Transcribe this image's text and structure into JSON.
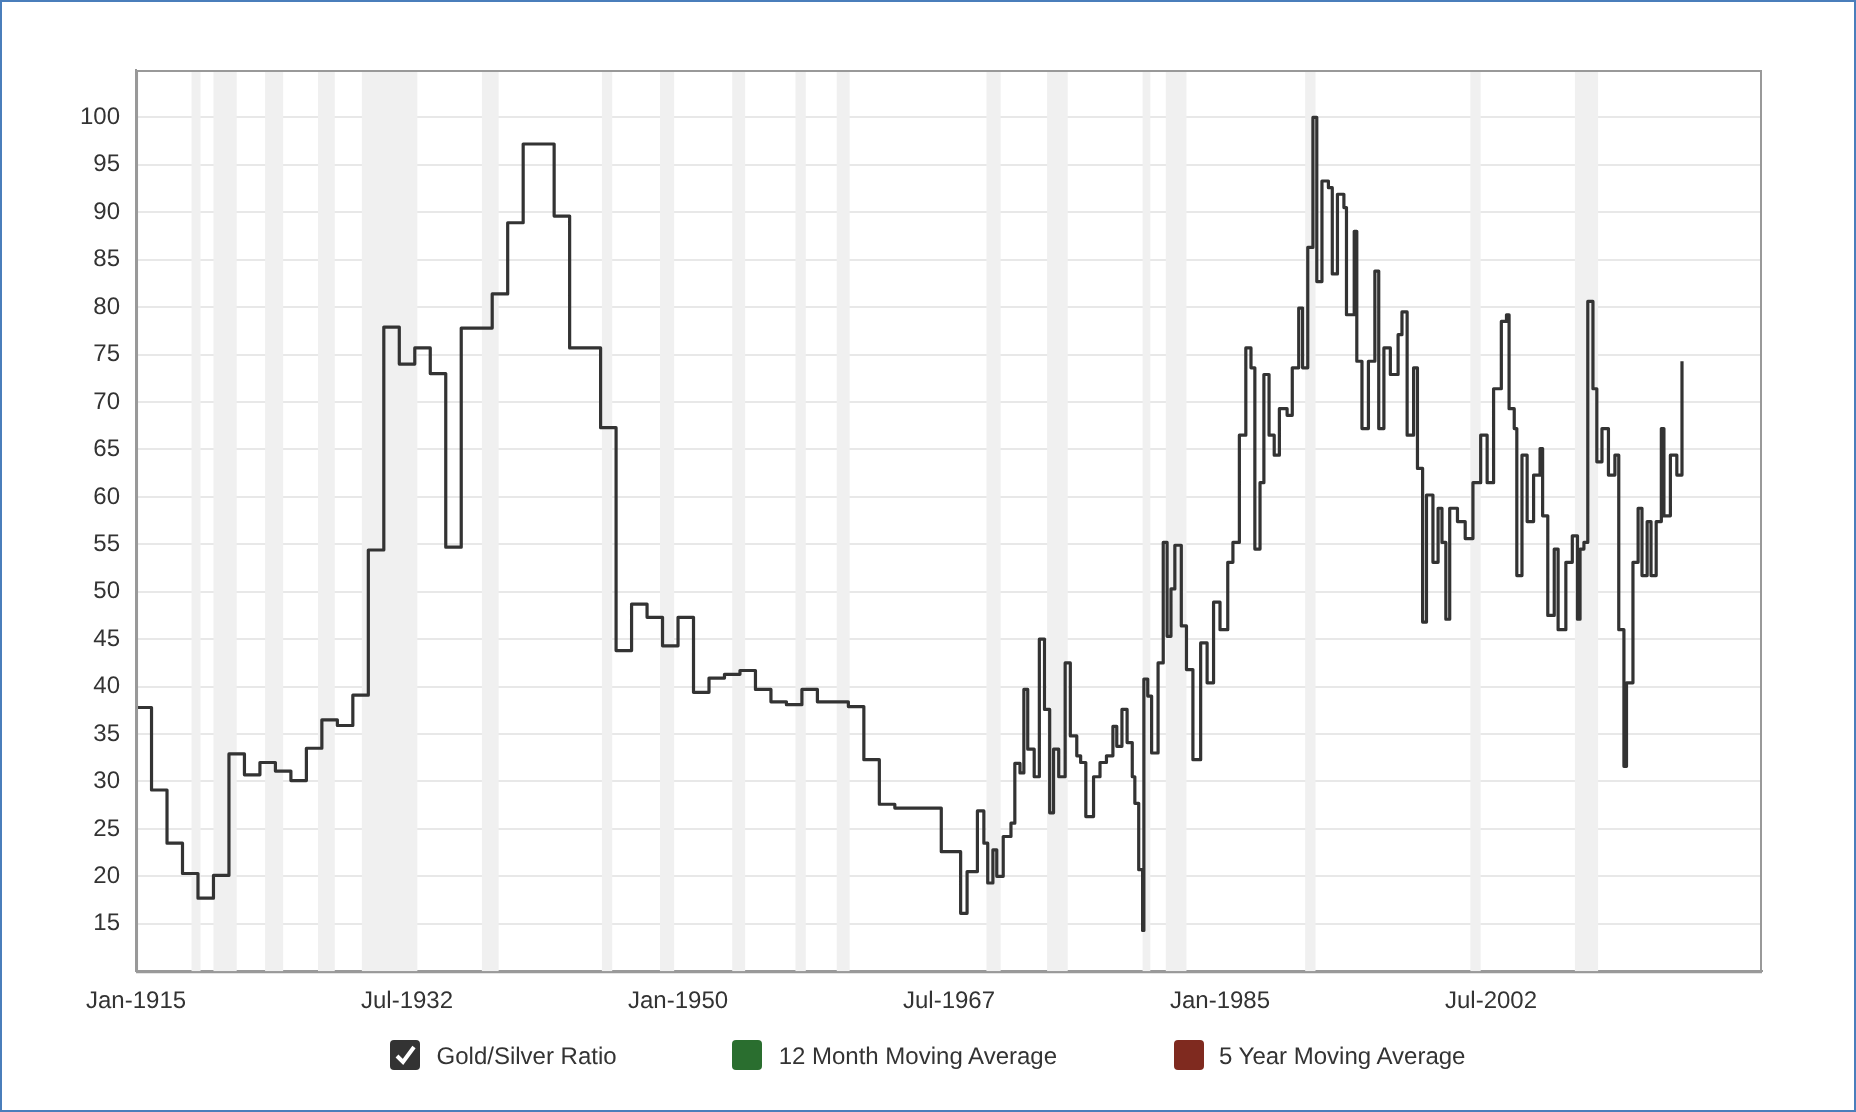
{
  "chart_data": {
    "type": "step",
    "xlim": [
      "1915-01",
      "2020-01"
    ],
    "ylim": [
      10,
      105
    ],
    "xticks": [
      {
        "value": "1915-01",
        "label": "Jan-1915"
      },
      {
        "value": "1932-07",
        "label": "Jul-1932"
      },
      {
        "value": "1950-01",
        "label": "Jan-1950"
      },
      {
        "value": "1967-07",
        "label": "Jul-1967"
      },
      {
        "value": "1985-01",
        "label": "Jan-1985"
      },
      {
        "value": "2002-07",
        "label": "Jul-2002"
      }
    ],
    "yticks": [
      15,
      20,
      25,
      30,
      35,
      40,
      45,
      50,
      55,
      60,
      65,
      70,
      75,
      80,
      85,
      90,
      95,
      100
    ],
    "grid": "y",
    "legend": "bottom",
    "line_style": "solid",
    "bands": [
      {
        "axis": "x",
        "from": "1918-08",
        "to": "1919-03",
        "color": "#f0f0f0"
      },
      {
        "axis": "x",
        "from": "1920-01",
        "to": "1921-07",
        "color": "#f0f0f0"
      },
      {
        "axis": "x",
        "from": "1923-05",
        "to": "1924-07",
        "color": "#f0f0f0"
      },
      {
        "axis": "x",
        "from": "1926-10",
        "to": "1927-11",
        "color": "#f0f0f0"
      },
      {
        "axis": "x",
        "from": "1929-08",
        "to": "1933-03",
        "color": "#f0f0f0"
      },
      {
        "axis": "x",
        "from": "1937-05",
        "to": "1938-06",
        "color": "#f0f0f0"
      },
      {
        "axis": "x",
        "from": "1945-02",
        "to": "1945-10",
        "color": "#f0f0f0"
      },
      {
        "axis": "x",
        "from": "1948-11",
        "to": "1949-10",
        "color": "#f0f0f0"
      },
      {
        "axis": "x",
        "from": "1953-07",
        "to": "1954-05",
        "color": "#f0f0f0"
      },
      {
        "axis": "x",
        "from": "1957-08",
        "to": "1958-04",
        "color": "#f0f0f0"
      },
      {
        "axis": "x",
        "from": "1960-04",
        "to": "1961-02",
        "color": "#f0f0f0"
      },
      {
        "axis": "x",
        "from": "1969-12",
        "to": "1970-11",
        "color": "#f0f0f0"
      },
      {
        "axis": "x",
        "from": "1973-11",
        "to": "1975-03",
        "color": "#f0f0f0"
      },
      {
        "axis": "x",
        "from": "1980-01",
        "to": "1980-07",
        "color": "#f0f0f0"
      },
      {
        "axis": "x",
        "from": "1981-07",
        "to": "1982-11",
        "color": "#f0f0f0"
      },
      {
        "axis": "x",
        "from": "1990-07",
        "to": "1991-03",
        "color": "#f0f0f0"
      },
      {
        "axis": "x",
        "from": "2001-03",
        "to": "2001-11",
        "color": "#f0f0f0"
      },
      {
        "axis": "x",
        "from": "2007-12",
        "to": "2009-06",
        "color": "#f0f0f0"
      }
    ],
    "series": [
      {
        "name": "Gold/Silver Ratio",
        "color": "#333333",
        "x": [
          "1915-01",
          "1916-01",
          "1917-01",
          "1918-01",
          "1919-01",
          "1920-01",
          "1921-01",
          "1922-01",
          "1923-01",
          "1924-01",
          "1925-01",
          "1926-01",
          "1927-01",
          "1928-01",
          "1929-01",
          "1930-01",
          "1931-01",
          "1932-01",
          "1933-01",
          "1934-01",
          "1935-01",
          "1936-01",
          "1937-01",
          "1938-01",
          "1939-01",
          "1940-01",
          "1941-01",
          "1942-01",
          "1943-01",
          "1944-01",
          "1945-01",
          "1946-01",
          "1947-01",
          "1948-01",
          "1949-01",
          "1950-01",
          "1951-01",
          "1952-01",
          "1953-01",
          "1954-01",
          "1955-01",
          "1956-01",
          "1957-01",
          "1958-01",
          "1959-01",
          "1960-01",
          "1961-01",
          "1962-01",
          "1963-01",
          "1964-01",
          "1965-01",
          "1966-01",
          "1967-01",
          "1968-04",
          "1968-09",
          "1969-02",
          "1969-05",
          "1969-10",
          "1970-01",
          "1970-05",
          "1970-08",
          "1971-01",
          "1971-07",
          "1971-10",
          "1972-02",
          "1972-05",
          "1972-08",
          "1973-01",
          "1973-05",
          "1973-09",
          "1974-01",
          "1974-04",
          "1974-08",
          "1975-01",
          "1975-05",
          "1975-10",
          "1976-01",
          "1976-05",
          "1976-11",
          "1977-04",
          "1977-09",
          "1978-02",
          "1978-05",
          "1978-09",
          "1979-01",
          "1979-05",
          "1979-07",
          "1979-10",
          "1980-01",
          "1980-02",
          "1980-05",
          "1980-08",
          "1981-01",
          "1981-05",
          "1981-08",
          "1981-11",
          "1982-02",
          "1982-07",
          "1982-11",
          "1983-04",
          "1983-10",
          "1984-03",
          "1984-08",
          "1985-01",
          "1985-07",
          "1985-11",
          "1986-04",
          "1986-09",
          "1987-01",
          "1987-04",
          "1987-08",
          "1987-11",
          "1988-03",
          "1988-07",
          "1988-11",
          "1989-05",
          "1989-09",
          "1990-02",
          "1990-05",
          "1990-09",
          "1991-01",
          "1991-04",
          "1991-08",
          "1992-01",
          "1992-04",
          "1992-08",
          "1993-01",
          "1993-03",
          "1993-09",
          "1993-11",
          "1994-03",
          "1994-08",
          "1995-01",
          "1995-04",
          "1995-08",
          "1996-01",
          "1996-07",
          "1996-10",
          "1997-02",
          "1997-07",
          "1997-10",
          "1998-02",
          "1998-05",
          "1998-10",
          "1999-02",
          "1999-05",
          "1999-08",
          "1999-11",
          "2000-05",
          "2000-11",
          "2001-05",
          "2001-11",
          "2002-04",
          "2002-09",
          "2003-03",
          "2003-07",
          "2003-09",
          "2004-01",
          "2004-03",
          "2004-07",
          "2004-11",
          "2005-04",
          "2005-09",
          "2005-11",
          "2006-03",
          "2006-08",
          "2006-11",
          "2007-05",
          "2007-10",
          "2008-02",
          "2008-04",
          "2008-07",
          "2008-10",
          "2009-02",
          "2009-05",
          "2009-09",
          "2010-02",
          "2010-07",
          "2010-10",
          "2011-02",
          "2011-04",
          "2011-09",
          "2012-01",
          "2012-04",
          "2012-08",
          "2012-11",
          "2013-03",
          "2013-07",
          "2013-09",
          "2014-02",
          "2014-07",
          "2014-11"
        ],
        "values": [
          37.8,
          29.1,
          23.5,
          20.3,
          17.7,
          20.1,
          32.9,
          30.7,
          32.0,
          31.1,
          30.1,
          33.5,
          36.5,
          35.9,
          39.1,
          54.4,
          77.9,
          74.0,
          75.7,
          73.0,
          54.7,
          77.8,
          77.8,
          81.4,
          88.9,
          97.2,
          97.2,
          89.6,
          75.7,
          75.7,
          67.3,
          43.8,
          48.7,
          47.3,
          44.3,
          47.3,
          39.4,
          40.9,
          41.3,
          41.7,
          39.7,
          38.4,
          38.1,
          39.7,
          38.4,
          38.4,
          37.9,
          32.3,
          27.6,
          27.2,
          27.2,
          27.2,
          22.6,
          16.1,
          20.5,
          20.5,
          26.9,
          23.5,
          19.3,
          22.8,
          20.0,
          24.2,
          25.6,
          31.9,
          30.9,
          39.7,
          33.4,
          30.5,
          45.0,
          37.6,
          26.7,
          33.4,
          30.5,
          42.5,
          34.8,
          32.7,
          32.0,
          26.3,
          30.5,
          32.0,
          32.7,
          35.8,
          33.7,
          37.6,
          34.1,
          30.5,
          27.7,
          20.7,
          14.3,
          40.8,
          39.0,
          33.0,
          42.5,
          55.2,
          45.3,
          50.3,
          54.9,
          46.4,
          41.8,
          32.3,
          44.6,
          40.4,
          48.9,
          46.0,
          53.1,
          55.2,
          66.5,
          75.7,
          73.6,
          54.5,
          61.5,
          72.9,
          66.5,
          64.4,
          69.3,
          68.6,
          73.6,
          79.9,
          73.6,
          86.3,
          100,
          82.7,
          93.3,
          92.6,
          83.5,
          91.9,
          90.5,
          79.2,
          88.0,
          74.3,
          67.2,
          74.3,
          83.8,
          67.2,
          75.7,
          72.9,
          77.1,
          79.5,
          66.5,
          73.6,
          63.0,
          46.8,
          60.2,
          53.1,
          58.8,
          55.2,
          47.1,
          58.8,
          57.4,
          55.6,
          61.5,
          66.5,
          61.5,
          71.4,
          78.5,
          79.2,
          69.3,
          67.2,
          51.7,
          64.4,
          57.4,
          62.3,
          65.1,
          58.0,
          47.5,
          54.5,
          46.0,
          53.1,
          55.9,
          47.1,
          54.5,
          55.2,
          80.6,
          71.4,
          63.7,
          67.2,
          62.3,
          64.4,
          46.0,
          31.6,
          40.4,
          53.1,
          58.8,
          51.7,
          57.4,
          51.7,
          57.4,
          67.2,
          58.0,
          64.4,
          62.3,
          74.3
        ]
      },
      {
        "name": "12 Month Moving Average",
        "color": "#2a6e2f"
      },
      {
        "name": "5 Year Moving Average",
        "color": "#7f2a1f"
      }
    ]
  }
}
